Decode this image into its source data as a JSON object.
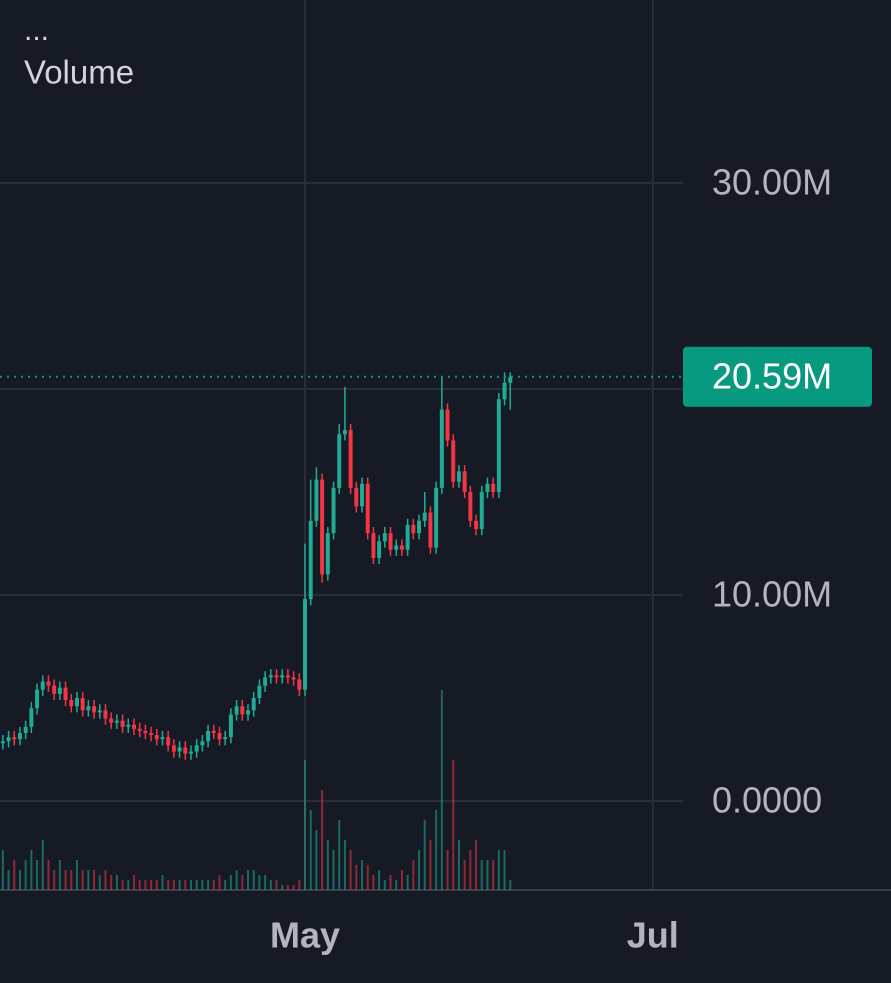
{
  "chart_data": {
    "type": "candlestick",
    "menu_label": "...",
    "title": "Volume",
    "up_color": "#22ab94",
    "down_color": "#f23645",
    "grid": true,
    "xlim": [
      -0.5,
      119.3
    ],
    "xticks": [
      {
        "value": 53,
        "label": "May"
      },
      {
        "value": 114,
        "label": "Jul"
      }
    ],
    "ylim": [
      -4.32,
      38.88
    ],
    "yticks": [
      {
        "value": 0,
        "label": "0.0000"
      },
      {
        "value": 10,
        "label": "10.00M"
      },
      {
        "value": 20,
        "label": null
      },
      {
        "value": 30,
        "label": "30.00M"
      }
    ],
    "last_value": 20.59,
    "last_label": "20.59M",
    "last_color": "#089981",
    "candles": [
      [
        2.8,
        3.2,
        2.5,
        2.9
      ],
      [
        2.9,
        3.4,
        2.6,
        3.1
      ],
      [
        3.1,
        3.4,
        2.7,
        3.0
      ],
      [
        3.0,
        3.6,
        2.7,
        3.3
      ],
      [
        3.3,
        3.9,
        3.0,
        3.6
      ],
      [
        3.6,
        4.8,
        3.3,
        4.5
      ],
      [
        4.5,
        5.7,
        4.2,
        5.4
      ],
      [
        5.4,
        6.1,
        5.1,
        5.8
      ],
      [
        5.8,
        6.1,
        5.3,
        5.6
      ],
      [
        5.6,
        5.9,
        4.9,
        5.2
      ],
      [
        5.2,
        5.8,
        4.9,
        5.5
      ],
      [
        5.5,
        5.8,
        4.6,
        4.9
      ],
      [
        4.9,
        5.2,
        4.3,
        4.6
      ],
      [
        4.6,
        5.3,
        4.3,
        5.0
      ],
      [
        5.0,
        5.3,
        4.1,
        4.4
      ],
      [
        4.4,
        4.9,
        4.1,
        4.6
      ],
      [
        4.6,
        4.9,
        4.0,
        4.3
      ],
      [
        4.3,
        4.7,
        4.0,
        4.4
      ],
      [
        4.4,
        4.7,
        3.7,
        4.0
      ],
      [
        4.0,
        4.3,
        3.5,
        3.8
      ],
      [
        3.8,
        4.2,
        3.5,
        3.9
      ],
      [
        3.9,
        4.2,
        3.3,
        3.6
      ],
      [
        3.6,
        4.0,
        3.3,
        3.7
      ],
      [
        3.7,
        4.0,
        3.2,
        3.5
      ],
      [
        3.5,
        3.8,
        3.1,
        3.4
      ],
      [
        3.4,
        3.7,
        3.0,
        3.3
      ],
      [
        3.3,
        3.6,
        2.9,
        3.2
      ],
      [
        3.2,
        3.5,
        2.7,
        3.0
      ],
      [
        3.0,
        3.4,
        2.7,
        3.1
      ],
      [
        3.1,
        3.4,
        2.4,
        2.7
      ],
      [
        2.7,
        3.0,
        2.1,
        2.4
      ],
      [
        2.4,
        2.9,
        2.1,
        2.6
      ],
      [
        2.6,
        2.9,
        2.0,
        2.3
      ],
      [
        2.3,
        2.7,
        2.0,
        2.4
      ],
      [
        2.4,
        3.0,
        2.1,
        2.7
      ],
      [
        2.7,
        3.2,
        2.4,
        2.9
      ],
      [
        2.9,
        3.7,
        2.6,
        3.4
      ],
      [
        3.4,
        3.7,
        3.0,
        3.3
      ],
      [
        3.3,
        3.6,
        2.7,
        3.0
      ],
      [
        3.0,
        3.4,
        2.7,
        3.1
      ],
      [
        3.1,
        4.5,
        2.8,
        4.2
      ],
      [
        4.2,
        4.9,
        3.9,
        4.6
      ],
      [
        4.6,
        4.9,
        3.9,
        4.2
      ],
      [
        4.2,
        4.7,
        3.9,
        4.4
      ],
      [
        4.4,
        5.3,
        4.1,
        5.0
      ],
      [
        5.0,
        5.9,
        4.7,
        5.6
      ],
      [
        5.6,
        6.3,
        5.3,
        6.0
      ],
      [
        6.0,
        6.4,
        5.7,
        6.1
      ],
      [
        6.1,
        6.4,
        5.7,
        6.0
      ],
      [
        6.0,
        6.4,
        5.7,
        6.1
      ],
      [
        6.1,
        6.4,
        5.7,
        6.0
      ],
      [
        6.0,
        6.3,
        5.6,
        5.9
      ],
      [
        5.9,
        6.2,
        5.1,
        5.4
      ],
      [
        5.4,
        12.5,
        5.1,
        9.8
      ],
      [
        9.8,
        15.6,
        9.5,
        13.6
      ],
      [
        13.6,
        16.2,
        13.3,
        15.6
      ],
      [
        15.6,
        15.9,
        10.6,
        11.0
      ],
      [
        11.0,
        13.3,
        10.7,
        13.0
      ],
      [
        13.0,
        15.5,
        12.7,
        15.2
      ],
      [
        15.2,
        18.3,
        14.9,
        17.8
      ],
      [
        17.8,
        20.1,
        17.5,
        18.0
      ],
      [
        18.0,
        18.3,
        14.9,
        15.2
      ],
      [
        15.2,
        15.5,
        14.0,
        14.3
      ],
      [
        14.3,
        15.7,
        14.0,
        15.4
      ],
      [
        15.4,
        15.7,
        12.7,
        13.0
      ],
      [
        13.0,
        13.3,
        11.5,
        11.8
      ],
      [
        11.8,
        12.9,
        11.5,
        12.6
      ],
      [
        12.6,
        13.3,
        12.3,
        13.0
      ],
      [
        13.0,
        13.3,
        11.9,
        12.2
      ],
      [
        12.2,
        12.7,
        11.9,
        12.4
      ],
      [
        12.4,
        12.7,
        11.9,
        12.2
      ],
      [
        12.2,
        13.7,
        11.9,
        13.4
      ],
      [
        13.4,
        13.7,
        12.7,
        13.0
      ],
      [
        13.0,
        13.9,
        12.7,
        13.6
      ],
      [
        13.6,
        15.0,
        13.3,
        14.0
      ],
      [
        14.0,
        14.3,
        12.0,
        12.3
      ],
      [
        12.3,
        15.5,
        12.0,
        15.2
      ],
      [
        15.2,
        20.6,
        14.9,
        19.0
      ],
      [
        19.0,
        19.3,
        17.2,
        17.5
      ],
      [
        17.5,
        17.8,
        15.2,
        15.5
      ],
      [
        15.5,
        16.3,
        15.2,
        16.0
      ],
      [
        16.0,
        16.3,
        14.7,
        15.0
      ],
      [
        15.0,
        15.3,
        13.3,
        13.6
      ],
      [
        13.6,
        13.9,
        12.9,
        13.2
      ],
      [
        13.2,
        15.3,
        12.9,
        15.0
      ],
      [
        15.0,
        15.7,
        14.7,
        15.4
      ],
      [
        15.4,
        15.7,
        14.7,
        15.0
      ],
      [
        15.0,
        19.8,
        14.7,
        19.5
      ],
      [
        19.5,
        20.8,
        19.2,
        20.3
      ],
      [
        20.3,
        20.8,
        19.0,
        20.59
      ]
    ],
    "volume": [
      4,
      2,
      3,
      2,
      3,
      4,
      3,
      5,
      3,
      2,
      3,
      2,
      2,
      3,
      2,
      2,
      2,
      1.5,
      2,
      1.5,
      1.5,
      1,
      1,
      1.5,
      1,
      1,
      1,
      1,
      1.5,
      1,
      1,
      1,
      1,
      1,
      1,
      1,
      1,
      1,
      1.5,
      1,
      1.5,
      2,
      1.5,
      2,
      2,
      1.5,
      1.5,
      1,
      1,
      0.5,
      0.5,
      0.5,
      1,
      13,
      8,
      6,
      10,
      5,
      4,
      7,
      5,
      4,
      2.5,
      3,
      2.5,
      1.5,
      2,
      1,
      1.5,
      1,
      2,
      1.5,
      3,
      4,
      7,
      5,
      8,
      20,
      4,
      13,
      5,
      3,
      4,
      5,
      3,
      3,
      3,
      4,
      4,
      1
    ]
  }
}
